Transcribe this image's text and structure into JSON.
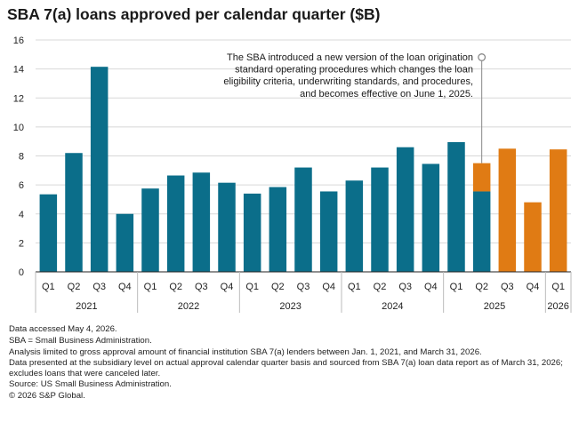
{
  "chart_data": {
    "type": "bar",
    "title": "SBA 7(a) loans approved per calendar quarter ($B)",
    "ylim": [
      0,
      16
    ],
    "yticks": [
      0,
      2,
      4,
      6,
      8,
      10,
      12,
      14,
      16
    ],
    "grid": true,
    "categories": [
      "Q1",
      "Q2",
      "Q3",
      "Q4",
      "Q1",
      "Q2",
      "Q3",
      "Q4",
      "Q1",
      "Q2",
      "Q3",
      "Q4",
      "Q1",
      "Q2",
      "Q3",
      "Q4",
      "Q1",
      "Q2",
      "Q3",
      "Q4",
      "Q1"
    ],
    "years": [
      {
        "label": "2021",
        "count": 4
      },
      {
        "label": "2022",
        "count": 4
      },
      {
        "label": "2023",
        "count": 4
      },
      {
        "label": "2024",
        "count": 4
      },
      {
        "label": "2025",
        "count": 4
      },
      {
        "label": "2026",
        "count": 1
      }
    ],
    "series": [
      {
        "color": "#0b6e8a",
        "values": [
          5.35,
          8.2,
          14.15,
          4.0,
          5.75,
          6.65,
          6.85,
          6.15,
          5.4,
          5.85,
          7.2,
          5.55,
          6.3,
          7.2,
          8.6,
          7.45,
          8.95,
          5.55,
          0,
          0,
          0
        ]
      },
      {
        "color": "#e07b14",
        "values": [
          0,
          0,
          0,
          0,
          0,
          0,
          0,
          0,
          0,
          0,
          0,
          0,
          0,
          0,
          0,
          0,
          0,
          1.95,
          8.5,
          4.8,
          8.45
        ]
      }
    ],
    "annotation": {
      "lines": [
        "The SBA introduced a new version of the loan origination",
        "standard operating procedures which changes the loan",
        "eligibility criteria, underwriting standards, and procedures,",
        "and becomes effective on June 1, 2025."
      ],
      "category_index": 17
    }
  },
  "footnotes": [
    "Data accessed May 4, 2026.",
    "SBA = Small Business Administration.",
    "Analysis limited to gross approval amount of financial institution SBA 7(a) lenders between Jan. 1, 2021, and March 31, 2026.",
    "Data presented at the subsidiary level on actual approval calendar quarter basis and sourced from SBA 7(a) loan data report as of March 31, 2026; excludes loans that were canceled later.",
    "Source: US Small Business Administration.",
    "© 2026 S&P Global."
  ]
}
